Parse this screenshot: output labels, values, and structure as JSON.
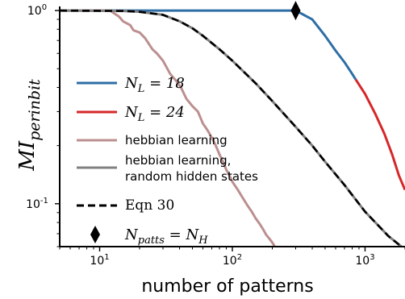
{
  "chart_data": {
    "type": "line",
    "xscale": "log",
    "yscale": "log",
    "xlim": [
      5,
      2000
    ],
    "ylim": [
      0.06,
      1.03
    ],
    "xlabel": "number of patterns",
    "ylabel_base": "MI",
    "ylabel_sub": "perinbit",
    "xticks": [
      {
        "value": 10,
        "base": "10",
        "exp": "1"
      },
      {
        "value": 100,
        "base": "10",
        "exp": "2"
      },
      {
        "value": 1000,
        "base": "10",
        "exp": "3"
      }
    ],
    "yticks": [
      {
        "value": 1,
        "base": "10",
        "exp": "0"
      },
      {
        "value": 0.1,
        "base": "10",
        "exp": "-1"
      }
    ],
    "legend_position": "lower-left",
    "series": [
      {
        "key": "nl18",
        "name": "N_L = 18",
        "color": "#2e6ea6",
        "width": 3,
        "dash": "",
        "points": [
          [
            5,
            1
          ],
          [
            300,
            1
          ],
          [
            400,
            0.9
          ],
          [
            500,
            0.74
          ],
          [
            600,
            0.62
          ],
          [
            700,
            0.54
          ],
          [
            800,
            0.47
          ],
          [
            850,
            0.44
          ]
        ]
      },
      {
        "key": "nl24",
        "name": "N_L = 24",
        "color": "#d62728",
        "width": 3,
        "dash": "",
        "points": [
          [
            850,
            0.44
          ],
          [
            1000,
            0.37
          ],
          [
            1200,
            0.29
          ],
          [
            1400,
            0.23
          ],
          [
            1600,
            0.18
          ],
          [
            1800,
            0.14
          ],
          [
            2000,
            0.118
          ]
        ]
      },
      {
        "key": "hebb",
        "name": "hebbian learning",
        "color": "#bc8f8f",
        "width": 3,
        "dash": "",
        "points": [
          [
            5,
            1
          ],
          [
            12,
            1
          ],
          [
            14,
            0.93
          ],
          [
            15,
            0.88
          ],
          [
            17,
            0.84
          ],
          [
            18,
            0.79
          ],
          [
            20,
            0.77
          ],
          [
            22,
            0.72
          ],
          [
            25,
            0.63
          ],
          [
            27,
            0.6
          ],
          [
            30,
            0.55
          ],
          [
            34,
            0.47
          ],
          [
            38,
            0.43
          ],
          [
            41,
            0.4
          ],
          [
            45,
            0.35
          ],
          [
            50,
            0.32
          ],
          [
            55,
            0.3
          ],
          [
            60,
            0.26
          ],
          [
            65,
            0.24
          ],
          [
            70,
            0.22
          ],
          [
            75,
            0.2
          ],
          [
            80,
            0.18
          ],
          [
            85,
            0.165
          ],
          [
            90,
            0.15
          ],
          [
            95,
            0.14
          ],
          [
            100,
            0.13
          ],
          [
            110,
            0.118
          ],
          [
            120,
            0.107
          ],
          [
            130,
            0.098
          ],
          [
            140,
            0.091
          ],
          [
            150,
            0.084
          ],
          [
            160,
            0.079
          ],
          [
            170,
            0.074
          ],
          [
            180,
            0.069
          ],
          [
            190,
            0.066
          ],
          [
            200,
            0.063
          ],
          [
            215,
            0.058
          ]
        ]
      },
      {
        "key": "hebb_rand",
        "name": "hebbian learning, random hidden states",
        "color": "#808080",
        "width": 3,
        "dash": "",
        "points": [
          [
            5,
            1
          ],
          [
            15,
            0.995
          ],
          [
            20,
            0.985
          ],
          [
            30,
            0.95
          ],
          [
            40,
            0.88
          ],
          [
            50,
            0.81
          ],
          [
            60,
            0.74
          ],
          [
            80,
            0.63
          ],
          [
            100,
            0.55
          ],
          [
            150,
            0.42
          ],
          [
            200,
            0.34
          ],
          [
            300,
            0.25
          ],
          [
            400,
            0.2
          ],
          [
            500,
            0.165
          ],
          [
            700,
            0.125
          ],
          [
            1000,
            0.091
          ],
          [
            1500,
            0.068
          ],
          [
            2000,
            0.058
          ]
        ]
      },
      {
        "key": "eqn30",
        "name": "Eqn 30",
        "color": "#000000",
        "width": 2.6,
        "dash": "9,5",
        "points": [
          [
            5,
            1
          ],
          [
            15,
            0.995
          ],
          [
            20,
            0.985
          ],
          [
            30,
            0.95
          ],
          [
            40,
            0.88
          ],
          [
            50,
            0.81
          ],
          [
            60,
            0.74
          ],
          [
            80,
            0.63
          ],
          [
            100,
            0.55
          ],
          [
            150,
            0.42
          ],
          [
            200,
            0.34
          ],
          [
            300,
            0.25
          ],
          [
            400,
            0.2
          ],
          [
            500,
            0.165
          ],
          [
            700,
            0.125
          ],
          [
            1000,
            0.091
          ],
          [
            1500,
            0.068
          ],
          [
            2000,
            0.058
          ]
        ]
      }
    ],
    "marker": {
      "name": "N_patts = N_H",
      "x": 300,
      "y": 1,
      "shape": "diamond",
      "color": "#000000"
    },
    "legend": [
      {
        "key": "nl18",
        "type": "line",
        "color": "#2e6ea6",
        "dash": "",
        "style": "math",
        "parts": [
          [
            "N",
            ""
          ],
          [
            "L",
            "sub"
          ],
          [
            " = 18",
            ""
          ]
        ]
      },
      {
        "key": "nl24",
        "type": "line",
        "color": "#d62728",
        "dash": "",
        "style": "math",
        "parts": [
          [
            "N",
            ""
          ],
          [
            "L",
            "sub"
          ],
          [
            " = 24",
            ""
          ]
        ]
      },
      {
        "key": "hebb",
        "type": "line",
        "color": "#bc8f8f",
        "dash": "",
        "style": "sans",
        "lines": [
          "hebbian learning"
        ]
      },
      {
        "key": "hebb_rand",
        "type": "line",
        "color": "#808080",
        "dash": "",
        "style": "sans",
        "lines": [
          "hebbian learning,",
          "random hidden states"
        ]
      },
      {
        "key": "eqn30",
        "type": "line",
        "color": "#000000",
        "dash": "9,5",
        "style": "serif",
        "lines": [
          "Eqn 30"
        ]
      },
      {
        "key": "marker",
        "type": "diamond",
        "color": "#000000",
        "style": "math",
        "parts": [
          [
            "N",
            ""
          ],
          [
            "patts",
            "sub"
          ],
          [
            " = ",
            ""
          ],
          [
            "N",
            ""
          ],
          [
            "H",
            "sub"
          ]
        ]
      }
    ]
  }
}
